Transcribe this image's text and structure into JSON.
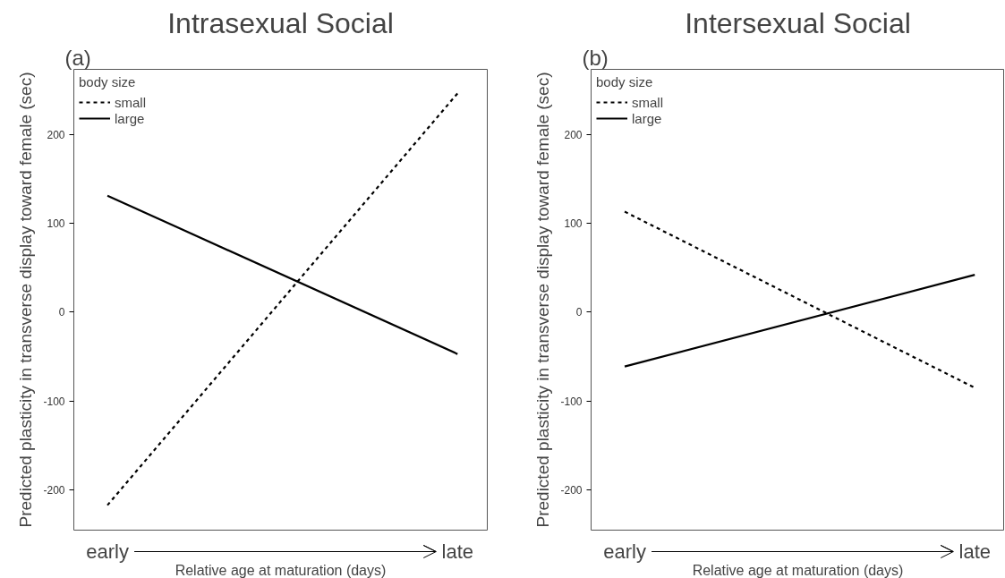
{
  "chart_data": [
    {
      "type": "line",
      "title": "Intrasexual Social",
      "ylabel": "Predicted plasticity in transverse display toward female (sec)",
      "xlabel": "Relative age at maturation (days)",
      "legend_title": "body size",
      "legend": "top left",
      "annotations": [
        "(a)"
      ],
      "categories": [
        "early",
        "late"
      ],
      "ylim": [
        -245,
        273
      ],
      "yticks": [
        -200,
        -100,
        0,
        100,
        200
      ],
      "grid": false,
      "series": [
        {
          "name": "small",
          "color": "#000000",
          "line_style": "dashed",
          "values": [
            -217,
            246
          ]
        },
        {
          "name": "large",
          "color": "#000000",
          "line_style": "solid",
          "values": [
            131,
            -47
          ]
        }
      ]
    },
    {
      "type": "line",
      "title": "Intersexual Social",
      "ylabel": "Predicted plasticity in transverse display toward female (sec)",
      "xlabel": "Relative age at maturation (days)",
      "legend_title": "body size",
      "legend": "top left",
      "annotations": [
        "(b)"
      ],
      "categories": [
        "early",
        "late"
      ],
      "ylim": [
        -245,
        273
      ],
      "yticks": [
        -200,
        -100,
        0,
        100,
        200
      ],
      "grid": false,
      "series": [
        {
          "name": "small",
          "color": "#000000",
          "line_style": "dashed",
          "values": [
            113,
            -85
          ]
        },
        {
          "name": "large",
          "color": "#000000",
          "line_style": "solid",
          "values": [
            -61,
            42
          ]
        }
      ]
    }
  ]
}
